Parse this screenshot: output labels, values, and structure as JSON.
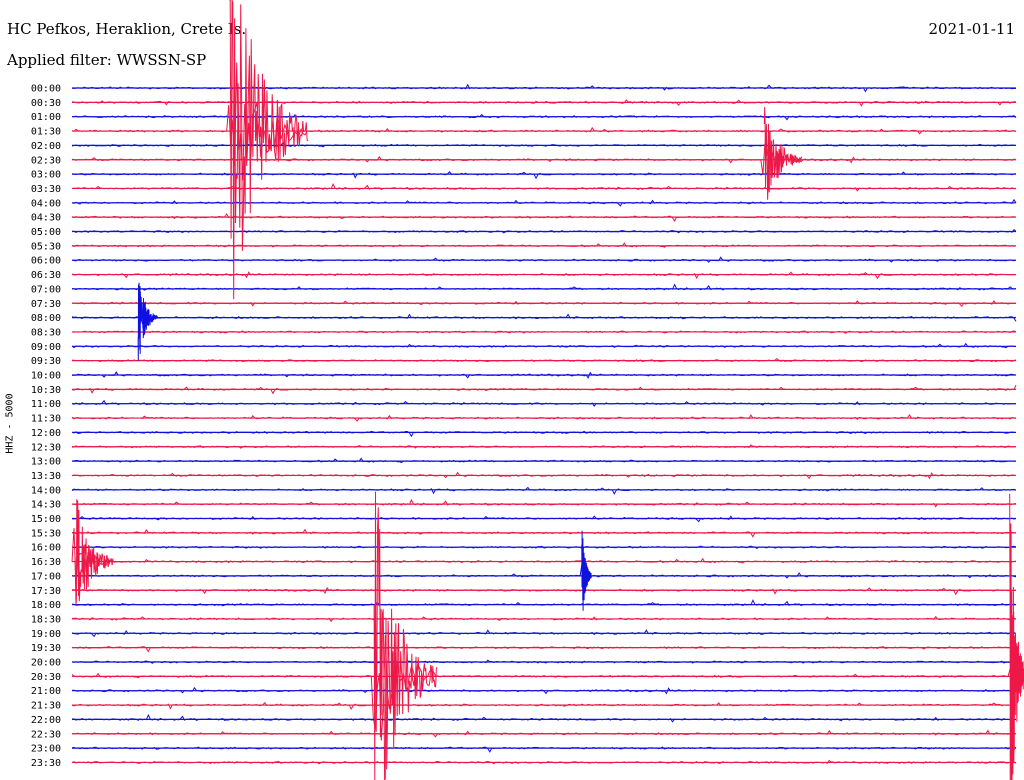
{
  "header": {
    "station": "HC Pefkos, Heraklion, Crete Is.",
    "filter": "Applied filter: WWSSN-SP",
    "date": "2021-01-11",
    "channel_label": "HHZ - 5000"
  },
  "colors": {
    "trace_a": "#1010e0",
    "trace_b": "#ee1848"
  },
  "chart_data": {
    "type": "line",
    "title": "HC Pefkos, Heraklion, Crete Is.",
    "subtitle": "Applied filter: WWSSN-SP",
    "date": "2021-01-11",
    "ylabel": "HHZ - 5000",
    "rows": [
      "00:00",
      "00:30",
      "01:00",
      "01:30",
      "02:00",
      "02:30",
      "03:00",
      "03:30",
      "04:00",
      "04:30",
      "05:00",
      "05:30",
      "06:00",
      "06:30",
      "07:00",
      "07:30",
      "08:00",
      "08:30",
      "09:00",
      "09:30",
      "10:00",
      "10:30",
      "11:00",
      "11:30",
      "12:00",
      "12:30",
      "13:00",
      "13:30",
      "14:00",
      "14:30",
      "15:00",
      "15:30",
      "16:00",
      "16:30",
      "17:00",
      "17:30",
      "18:00",
      "18:30",
      "19:00",
      "19:30",
      "20:00",
      "20:30",
      "21:00",
      "21:30",
      "22:00",
      "22:30",
      "23:00",
      "23:30"
    ],
    "minutes_per_row": 30,
    "row_colors": [
      "trace_a",
      "trace_b"
    ],
    "events": [
      {
        "row": 3,
        "minute": 5.0,
        "amplitude": 3.3,
        "coda_minutes": 2.5,
        "label": "large event 01:30"
      },
      {
        "row": 5,
        "minute": 22.0,
        "amplitude": 0.9,
        "coda_minutes": 1.2,
        "label": "event 02:30"
      },
      {
        "row": 16,
        "minute": 2.1,
        "amplitude": 0.8,
        "coda_minutes": 0.6,
        "label": "event 08:00"
      },
      {
        "row": 33,
        "minute": 0.1,
        "amplitude": 1.2,
        "coda_minutes": 1.2,
        "label": "event 16:30"
      },
      {
        "row": 41,
        "minute": 9.6,
        "amplitude": 3.2,
        "coda_minutes": 2.0,
        "label": "large event 20:30"
      },
      {
        "row": 34,
        "minute": 16.2,
        "amplitude": 0.9,
        "coda_minutes": 0.3,
        "label": "event 17:00"
      },
      {
        "row": 41,
        "minute": 29.8,
        "amplitude": 3.0,
        "coda_minutes": 0.5,
        "label": "large event 20:30 end"
      }
    ]
  }
}
